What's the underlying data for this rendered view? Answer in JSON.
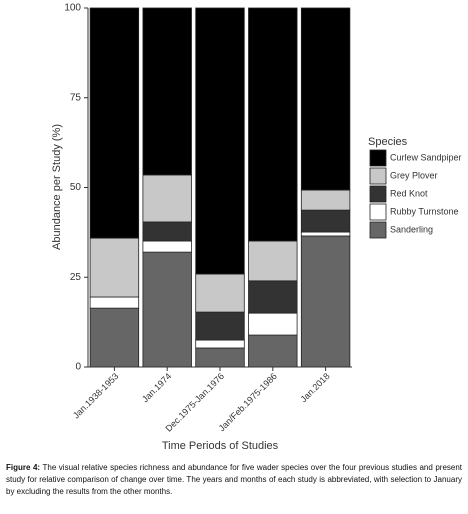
{
  "chart_data": {
    "type": "stacked-bar",
    "y_label": "Abundance per Study (%)",
    "x_label": "Time Periods of Studies",
    "legend_title": "Species",
    "categories": [
      "Jan.1938-1953",
      "Jan.1974",
      "Dec.1975-Jan.1976",
      "Jan/Feb.1975-1986",
      "Jan.2018"
    ],
    "series": [
      {
        "name": "Sanderling",
        "color": "#666666",
        "values": [
          16.4,
          32.0,
          5.3,
          8.9,
          36.5
        ]
      },
      {
        "name": "Rubby Turnstone",
        "color": "#ffffff",
        "values": [
          3.1,
          3.1,
          2.2,
          6.1,
          1.1
        ]
      },
      {
        "name": "Red Knot",
        "color": "#333333",
        "values": [
          0,
          5.3,
          7.8,
          9.0,
          6.1
        ]
      },
      {
        "name": "Grey Plover",
        "color": "#c8c8c8",
        "values": [
          16.4,
          13.1,
          10.6,
          11.1,
          5.6
        ]
      },
      {
        "name": "Curlew Sandpiper",
        "color": "#000000",
        "values": [
          64.1,
          46.5,
          74.1,
          64.9,
          50.7
        ]
      }
    ],
    "ylim": [
      0,
      100
    ],
    "yticks": [
      0,
      25,
      50,
      75,
      100
    ]
  },
  "caption": {
    "label": "Figure 4:",
    "text": "The visual relative species richness and abundance for five wader species over the four previous studies and present study for relative comparison of change over time. The years and months of each study is abbreviated, with selection to January by excluding the results from the other months."
  }
}
